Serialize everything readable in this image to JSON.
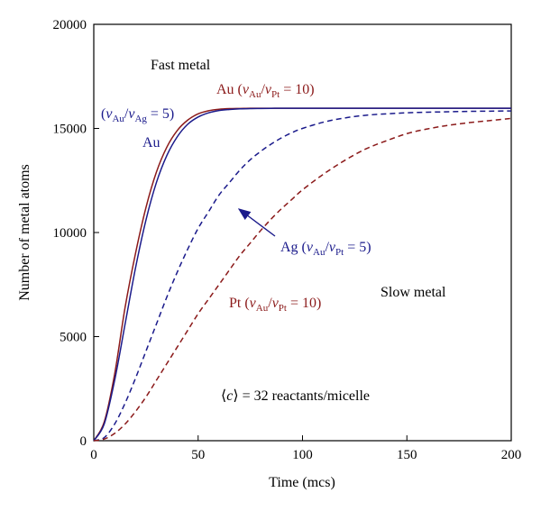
{
  "chart_data": {
    "type": "line",
    "xlabel": "Time (mcs)",
    "ylabel": "Number of metal atoms",
    "xlim": [
      0,
      200
    ],
    "ylim": [
      0,
      20000
    ],
    "x_ticks": [
      "0",
      "50",
      "100",
      "150",
      "200"
    ],
    "y_ticks": [
      "0",
      "5000",
      "10000",
      "15000",
      "20000"
    ],
    "grid": false,
    "legend": "none",
    "x": [
      0,
      5,
      10,
      15,
      20,
      25,
      30,
      35,
      40,
      45,
      50,
      55,
      60,
      65,
      70,
      75,
      80,
      85,
      90,
      95,
      100,
      110,
      120,
      130,
      140,
      150,
      160,
      170,
      180,
      190,
      200
    ],
    "series": [
      {
        "color": "#8b1a1a",
        "style": "solid",
        "values": [
          0,
          900,
          3200,
          6400,
          9000,
          11200,
          12900,
          14100,
          14900,
          15400,
          15700,
          15850,
          15920,
          15950,
          15960,
          15970,
          15970,
          15970,
          15970,
          15970,
          15970,
          15970,
          15970,
          15970,
          15970,
          15970,
          15970,
          15970,
          15970,
          15970,
          15970
        ]
      },
      {
        "color": "#1a1a8b",
        "style": "solid",
        "values": [
          0,
          800,
          2900,
          5600,
          8300,
          10600,
          12400,
          13700,
          14600,
          15200,
          15550,
          15750,
          15860,
          15910,
          15940,
          15955,
          15960,
          15965,
          15970,
          15970,
          15970,
          15970,
          15970,
          15970,
          15970,
          15970,
          15970,
          15970,
          15970,
          15970,
          15970
        ]
      },
      {
        "color": "#1a1a8b",
        "style": "dashed",
        "values": [
          0,
          150,
          800,
          1800,
          3000,
          4300,
          5600,
          6900,
          8100,
          9200,
          10200,
          11000,
          11800,
          12400,
          13000,
          13500,
          13900,
          14250,
          14550,
          14800,
          15000,
          15300,
          15500,
          15630,
          15700,
          15750,
          15780,
          15800,
          15820,
          15830,
          15840
        ]
      },
      {
        "color": "#8b1a1a",
        "style": "dashed",
        "values": [
          0,
          80,
          350,
          800,
          1400,
          2100,
          2900,
          3700,
          4500,
          5300,
          6100,
          6800,
          7500,
          8200,
          8900,
          9500,
          10100,
          10650,
          11150,
          11600,
          12050,
          12800,
          13450,
          14000,
          14400,
          14750,
          14980,
          15150,
          15280,
          15380,
          15480
        ]
      }
    ],
    "annotations": {
      "fast_metal": "Fast metal",
      "slow_metal": "Slow metal",
      "au_pt_prefix": "Au (",
      "ag_prefix": "(",
      "au_label": "Au",
      "ag_pt_prefix": "Ag (",
      "pt_prefix": "Pt (",
      "v": "v",
      "sub_au": "Au",
      "sub_pt": "Pt",
      "sub_ag": "Ag",
      "slash": "/",
      "eq10": " = 10)",
      "eq5": " = 5)",
      "c_open": "⟨",
      "c_var": "c",
      "c_rest": "⟩ = 32 reactants/micelle"
    }
  }
}
